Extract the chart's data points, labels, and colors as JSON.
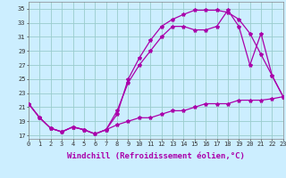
{
  "xlabel": "Windchill (Refroidissement éolien,°C)",
  "background_color": "#cceeff",
  "grid_color": "#99cccc",
  "line_color": "#aa00aa",
  "x_ticks": [
    0,
    1,
    2,
    3,
    4,
    5,
    6,
    7,
    8,
    9,
    10,
    11,
    12,
    13,
    14,
    15,
    16,
    17,
    18,
    19,
    20,
    21,
    22,
    23
  ],
  "y_ticks": [
    17,
    19,
    21,
    23,
    25,
    27,
    29,
    31,
    33,
    35
  ],
  "xlim": [
    0,
    23
  ],
  "ylim": [
    16.5,
    36.0
  ],
  "line1_x": [
    0,
    1,
    2,
    3,
    4,
    5,
    6,
    7,
    8,
    9,
    10,
    11,
    12,
    13,
    14,
    15,
    16,
    17,
    18,
    19,
    20,
    21,
    22,
    23
  ],
  "line1_y": [
    21.5,
    19.5,
    18.0,
    17.5,
    18.2,
    17.8,
    17.2,
    17.8,
    18.5,
    19.0,
    19.5,
    19.5,
    20.0,
    20.5,
    20.5,
    21.0,
    21.5,
    21.5,
    21.5,
    22.0,
    22.0,
    22.0,
    22.2,
    22.5
  ],
  "line2_x": [
    0,
    1,
    2,
    3,
    4,
    5,
    6,
    7,
    8,
    9,
    10,
    11,
    12,
    13,
    14,
    15,
    16,
    17,
    18,
    19,
    20,
    21,
    22,
    23
  ],
  "line2_y": [
    21.5,
    19.5,
    18.0,
    17.5,
    18.2,
    17.8,
    17.2,
    17.8,
    20.0,
    25.0,
    28.0,
    30.5,
    32.5,
    33.5,
    34.2,
    34.8,
    34.8,
    34.8,
    34.5,
    33.5,
    31.5,
    28.5,
    25.5,
    22.5
  ],
  "line3_x": [
    0,
    1,
    2,
    3,
    4,
    5,
    6,
    7,
    8,
    9,
    10,
    11,
    12,
    13,
    14,
    15,
    16,
    17,
    18,
    19,
    20,
    21,
    22,
    23
  ],
  "line3_y": [
    21.5,
    19.5,
    18.0,
    17.5,
    18.2,
    17.8,
    17.2,
    17.8,
    20.5,
    24.5,
    27.0,
    29.0,
    31.0,
    32.5,
    32.5,
    32.0,
    32.0,
    32.5,
    34.8,
    32.5,
    27.0,
    31.5,
    25.5,
    22.5
  ],
  "marker": "*",
  "markersize": 3,
  "linewidth": 0.9,
  "tick_fontsize": 5,
  "xlabel_fontsize": 6.5
}
